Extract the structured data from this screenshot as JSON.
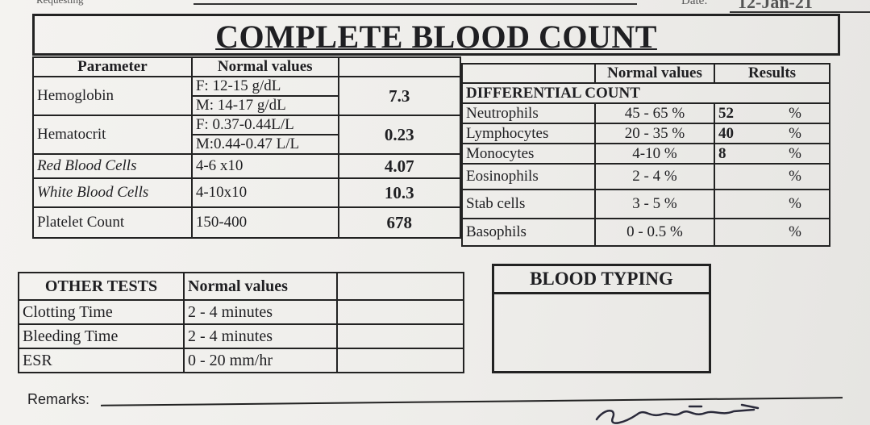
{
  "header": {
    "requesting_fragment": "Requesting",
    "date_label": "Date:",
    "date_value": "12-Jan-21",
    "title": "COMPLETE BLOOD COUNT"
  },
  "main_table": {
    "headers": [
      "Parameter",
      "Normal values"
    ],
    "rows": [
      {
        "name": "Hemoglobin",
        "normal_f": "F: 12-15 g/dL",
        "normal_m": "M: 14-17 g/dL",
        "result": "7.3"
      },
      {
        "name": "Hematocrit",
        "normal_f": "F: 0.37-0.44L/L",
        "normal_m": "M:0.44-0.47 L/L",
        "result": "0.23"
      },
      {
        "name": "Red Blood Cells",
        "normal": "4-6 x10",
        "result": "4.07"
      },
      {
        "name": "White Blood Cells",
        "normal": "4-10x10",
        "result": "10.3"
      },
      {
        "name": "Platelet Count",
        "normal": "150-400",
        "result": "678"
      }
    ]
  },
  "differential": {
    "headers": [
      "Normal values",
      "Results"
    ],
    "section": "DIFFERENTIAL COUNT",
    "rows": [
      {
        "name": "Neutrophils",
        "normal": "45 - 65 %",
        "result": "52",
        "unit": "%"
      },
      {
        "name": "Lymphocytes",
        "normal": "20 - 35 %",
        "result": "40",
        "unit": "%"
      },
      {
        "name": "Monocytes",
        "normal": "4-10 %",
        "result": "8",
        "unit": "%"
      },
      {
        "name": "Eosinophils",
        "normal": "2 - 4 %",
        "result": "",
        "unit": "%"
      },
      {
        "name": "Stab cells",
        "normal": "3 - 5 %",
        "result": "",
        "unit": "%"
      },
      {
        "name": "Basophils",
        "normal": "0 - 0.5 %",
        "result": "",
        "unit": "%"
      }
    ]
  },
  "other_tests": {
    "headers": [
      "OTHER TESTS",
      "Normal values"
    ],
    "rows": [
      {
        "name": "Clotting Time",
        "normal": "2 - 4 minutes"
      },
      {
        "name": "Bleeding Time",
        "normal": "2 - 4 minutes"
      },
      {
        "name": "ESR",
        "normal": "0 - 20 mm/hr"
      }
    ]
  },
  "blood_typing": {
    "title": "BLOOD TYPING"
  },
  "remarks": {
    "label": "Remarks:"
  }
}
